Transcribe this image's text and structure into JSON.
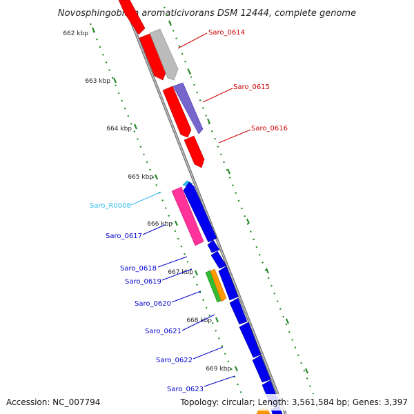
{
  "title": "Novosphingobium aromaticivorans DSM 12444, complete genome",
  "footer": {
    "accession": "Accession: NC_007794",
    "summary": "Topology: circular; Length: 3,561,584 bp; Genes: 3,397"
  },
  "kbp_ticks": [
    "662 kbp",
    "663 kbp",
    "664 kbp",
    "665 kbp",
    "666 kbp",
    "667 kbp",
    "668 kbp",
    "669 kbp"
  ],
  "gene_labels": {
    "saro_0614": "Saro_0614",
    "saro_0615": "Saro_0615",
    "saro_0616": "Saro_0616",
    "saro_r0008": "Saro_R0008",
    "saro_0617": "Saro_0617",
    "saro_0618": "Saro_0618",
    "saro_0619": "Saro_0619",
    "saro_0620": "Saro_0620",
    "saro_0621": "Saro_0621",
    "saro_0622": "Saro_0622",
    "saro_0623": "Saro_0623"
  },
  "colors": {
    "backbone": "#888888",
    "reverse_strand_genes": "#ff0000",
    "forward_strand_genes": "#0000ee",
    "rna_label": "#33bbee",
    "reverse_label": "#cc0000",
    "forward_label": "#0000cc",
    "grey_gene": "#bbbbbb",
    "purple_gene": "#7766cc",
    "pink_gene": "#ff3399",
    "green_gene": "#33bb33",
    "orange_gene": "#ff9900",
    "tick_dots": "#228822"
  }
}
